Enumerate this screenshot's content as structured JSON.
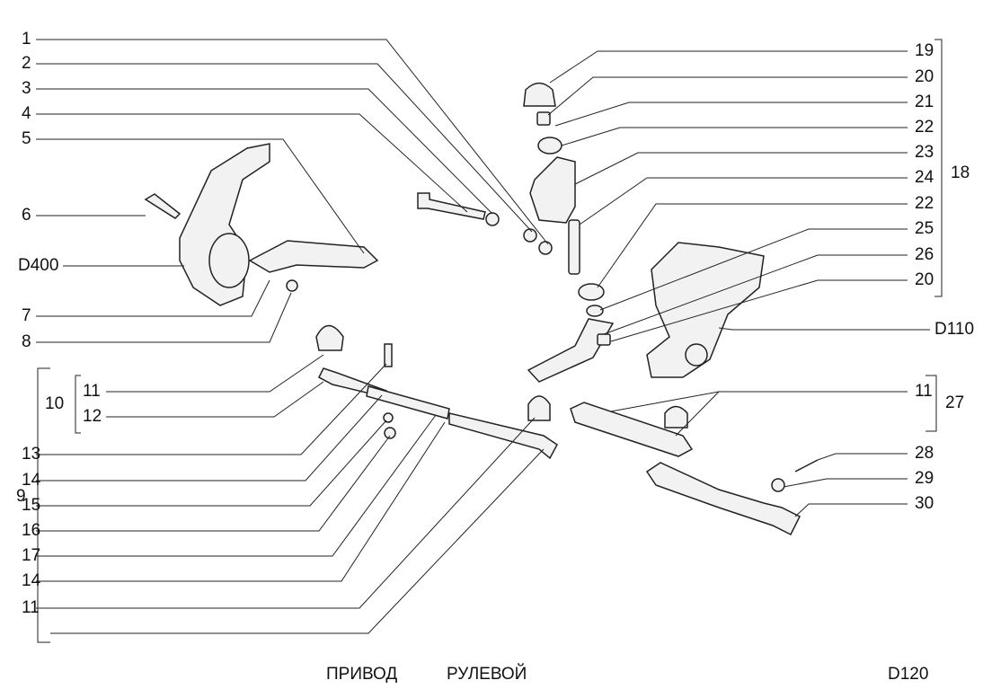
{
  "diagram": {
    "left_labels": [
      "1",
      "2",
      "3",
      "4",
      "5",
      "6",
      "D400",
      "7",
      "8",
      "11",
      "12",
      "13",
      "14",
      "15",
      "16",
      "17",
      "14",
      "11"
    ],
    "left_groups": {
      "group_10": "10",
      "group_9": "9"
    },
    "right_labels": [
      "19",
      "20",
      "21",
      "22",
      "23",
      "24",
      "22",
      "25",
      "26",
      "20",
      "D110",
      "11",
      "28",
      "29",
      "30"
    ],
    "right_groups": {
      "group_18": "18",
      "group_27": "27"
    }
  },
  "footer": {
    "title_word1": "ПРИВОД",
    "title_word2": "РУЛЕВОЙ",
    "page_code": "D120"
  },
  "colors": {
    "line": "#222222",
    "part_fill": "#f2f2f2"
  }
}
